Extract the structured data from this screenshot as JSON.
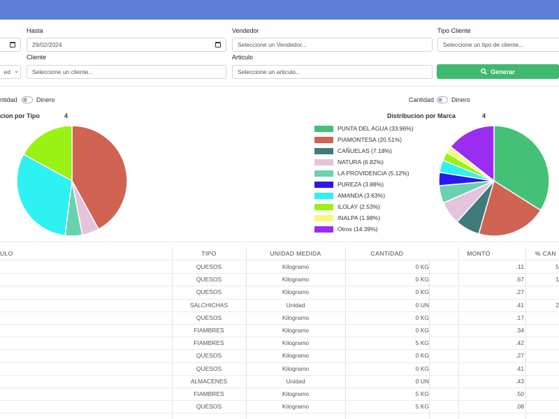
{
  "filters": {
    "hasta_label": "Hasta",
    "hasta_value": "29/02/2024",
    "vendedor_label": "Vendedor",
    "vendedor_placeholder": "Seleccione un Vendedor...",
    "tipo_cliente_label": "Tipo Cliente",
    "tipo_cliente_placeholder": "Seleccione un tipo de cliente...",
    "cliente_label": "Cliente",
    "cliente_placeholder": "Seleccione un cliente...",
    "articulo_label": "Articulo",
    "articulo_placeholder": "Seleccione un articulo...",
    "left_select_value": "ed",
    "generar_label": "Generar"
  },
  "toggles": {
    "left": {
      "off_label": "ntidad",
      "on_label": "Dinero"
    },
    "right": {
      "off_label": "Cantidad",
      "on_label": "Dinero"
    }
  },
  "colors": {
    "topbar": "#5b7fd4",
    "accent": "#3fb970"
  },
  "chart_data": [
    {
      "type": "pie",
      "title": "cion por Tipo",
      "note": "4",
      "values": [
        42,
        5,
        5,
        31,
        17
      ],
      "colors": [
        "#d06352",
        "#e6c3dc",
        "#68d1b0",
        "#2ef2f2",
        "#99f214"
      ]
    },
    {
      "type": "pie",
      "title": "Distribucion por Marca",
      "note": "4",
      "series": [
        {
          "name": "PUNTA DEL AGUA (33.96%)",
          "value": 33.96,
          "color": "#45c177"
        },
        {
          "name": "PIAMONTESA (20.51%)",
          "value": 20.51,
          "color": "#d06352"
        },
        {
          "name": "CAÑUELAS (7.18%)",
          "value": 7.18,
          "color": "#3f7b7b"
        },
        {
          "name": "NATURA (6.82%)",
          "value": 6.82,
          "color": "#e6c3dc"
        },
        {
          "name": "LA PROVIDENCIA (5.12%)",
          "value": 5.12,
          "color": "#68d1b0"
        },
        {
          "name": "PUREZA (3.88%)",
          "value": 3.88,
          "color": "#2b17f2"
        },
        {
          "name": "AMANDA (3.63%)",
          "value": 3.63,
          "color": "#2ef2f2"
        },
        {
          "name": "ILOLAY (2.53%)",
          "value": 2.53,
          "color": "#99f214"
        },
        {
          "name": "INALPA (1.98%)",
          "value": 1.98,
          "color": "#f6f97a"
        },
        {
          "name": "Otros (14.39%)",
          "value": 14.39,
          "color": "#9b2cf2"
        }
      ]
    }
  ],
  "table": {
    "headers": [
      "ULO",
      "TIPO",
      "UNIDAD MEDIDA",
      "CANTIDAD",
      "MONTO",
      "% CAN"
    ],
    "rows": [
      {
        "tipo": "QUESOS",
        "um": "Kilogramo",
        "cant": "0 KG",
        "monto": ".11",
        "pct": "5"
      },
      {
        "tipo": "QUESOS",
        "um": "Kilogramo",
        "cant": "0 KG",
        "monto": ".67",
        "pct": "1"
      },
      {
        "tipo": "QUESOS",
        "um": "Kilogramo",
        "cant": "0 KG",
        "monto": ".27",
        "pct": ""
      },
      {
        "tipo": "SALCHICHAS",
        "um": "Unidad",
        "cant": "0 UN",
        "monto": ".41",
        "pct": "2"
      },
      {
        "tipo": "QUESOS",
        "um": "Kilogramo",
        "cant": "0 KG",
        "monto": ".17",
        "pct": ""
      },
      {
        "tipo": "FIAMBRES",
        "um": "Kilogramo",
        "cant": "0 KG",
        "monto": ".34",
        "pct": ""
      },
      {
        "tipo": "FIAMBRES",
        "um": "Kilogramo",
        "cant": "5 KG",
        "monto": ".42",
        "pct": ""
      },
      {
        "tipo": "QUESOS",
        "um": "Kilogramo",
        "cant": "0 KG",
        "monto": ".27",
        "pct": ""
      },
      {
        "tipo": "QUESOS",
        "um": "Kilogramo",
        "cant": "0 KG",
        "monto": ".41",
        "pct": ""
      },
      {
        "tipo": "ALMACENES",
        "um": "Unidad",
        "cant": "0 UN",
        "monto": ".43",
        "pct": ""
      },
      {
        "tipo": "FIAMBRES",
        "um": "Kilogramo",
        "cant": "5 KG",
        "monto": ".50",
        "pct": ""
      },
      {
        "tipo": "QUESOS",
        "um": "Kilogramo",
        "cant": "5 KG",
        "monto": ".08",
        "pct": ""
      }
    ]
  }
}
